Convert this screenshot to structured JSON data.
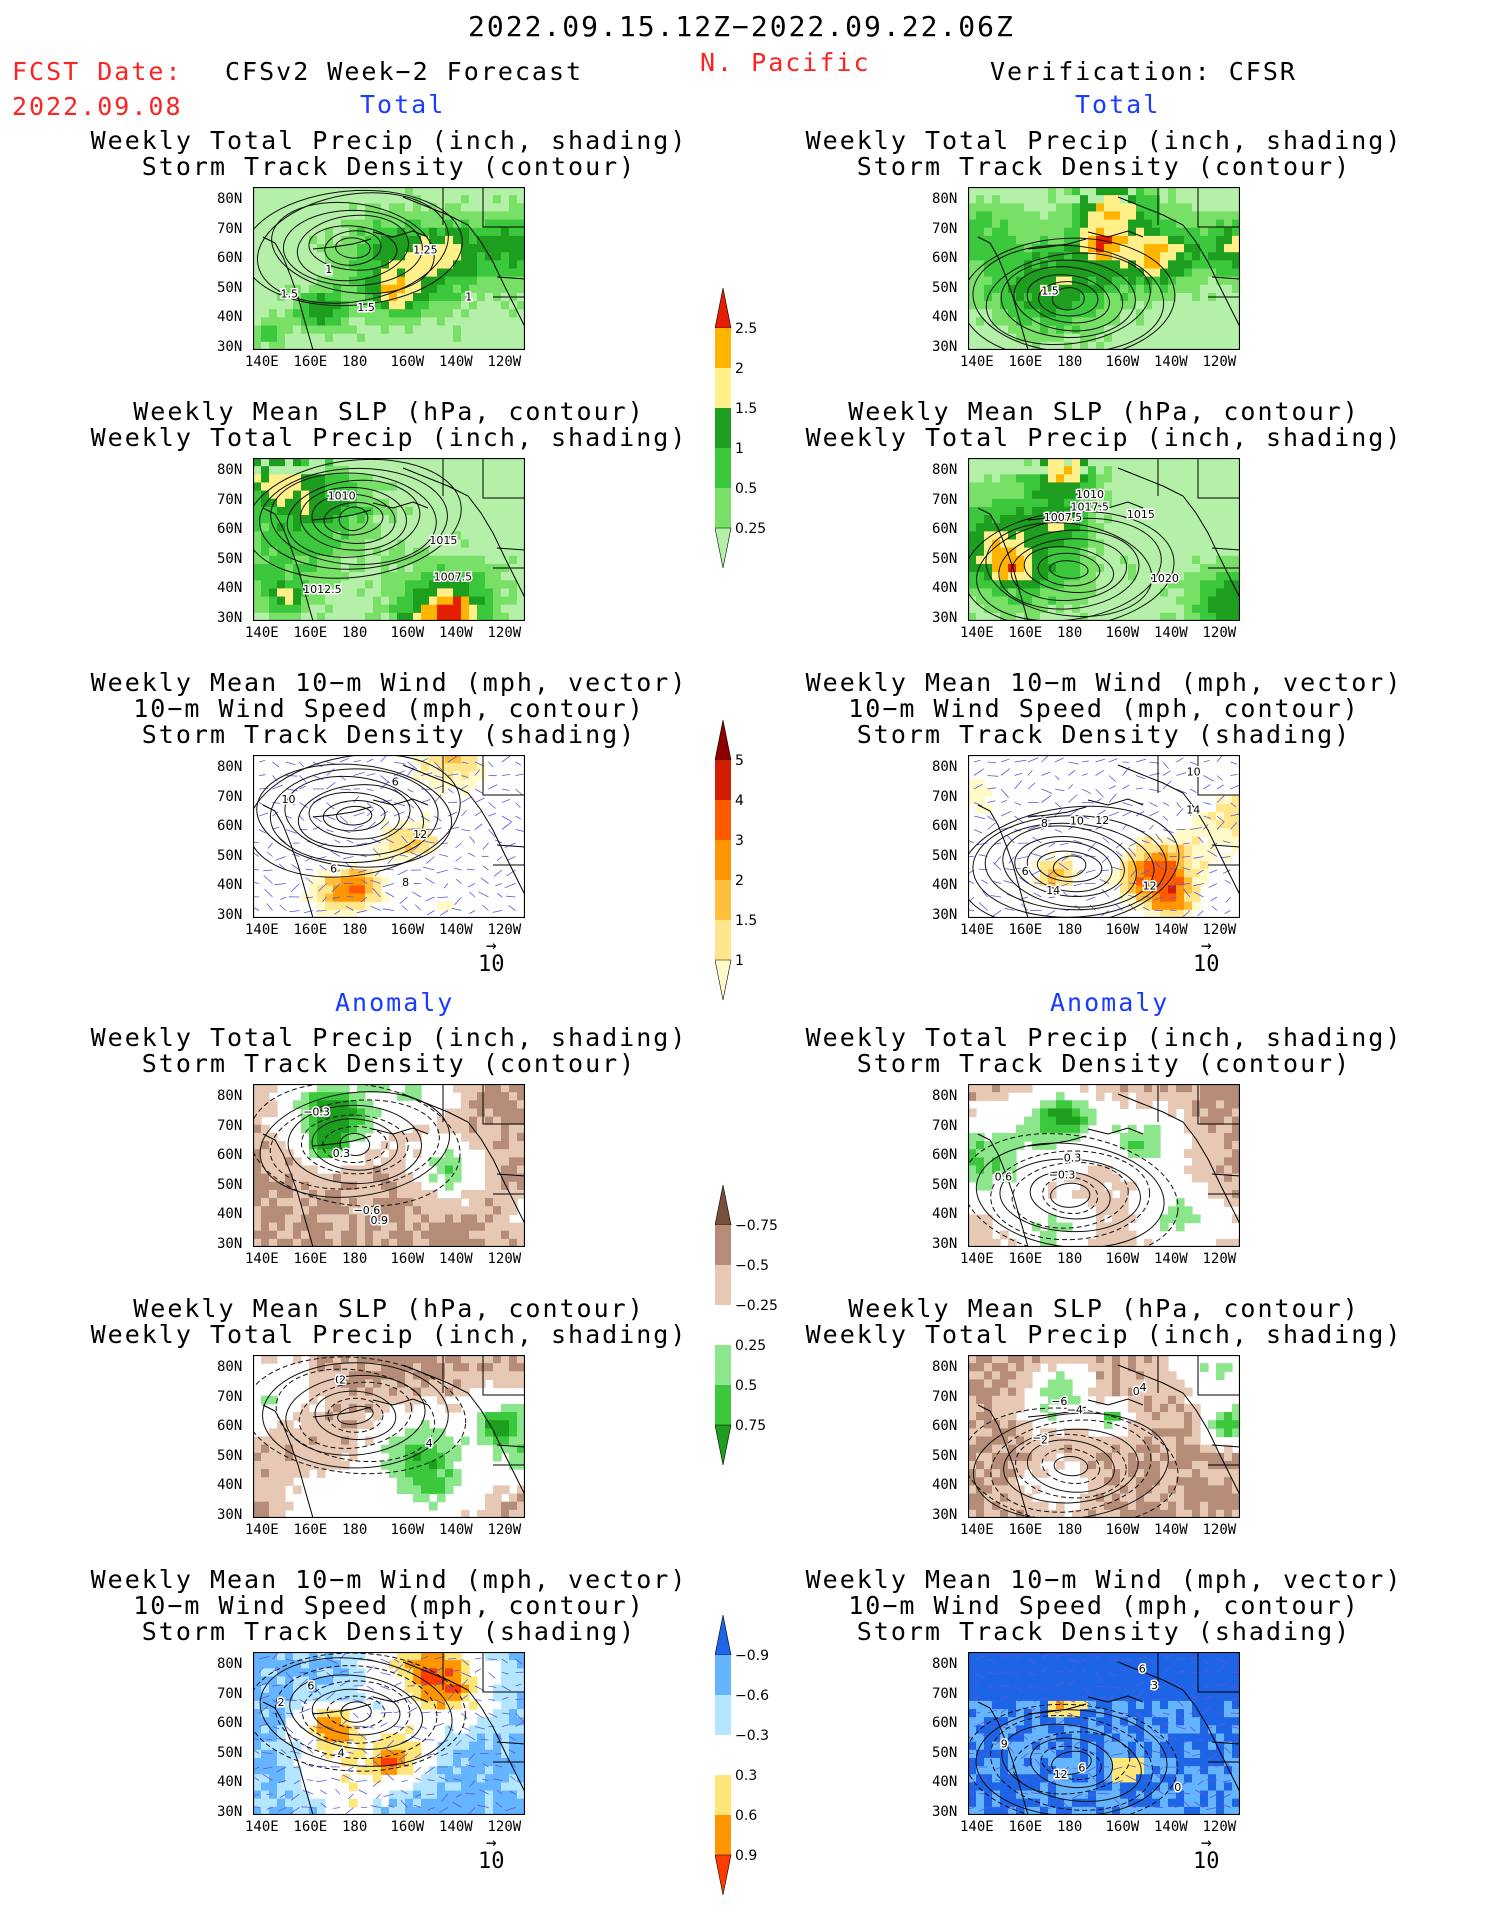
{
  "header": {
    "date_range": "2022.09.15.12Z−2022.09.22.06Z",
    "region": "N. Pacific",
    "fcst_label": "FCST Date:",
    "fcst_date": "2022.09.08",
    "left_title": "CFSv2 Week−2 Forecast",
    "right_title": "Verification: CFSR"
  },
  "sections": {
    "total": "Total",
    "anomaly": "Anomaly"
  },
  "panel_titles": {
    "precip_storm": [
      "Weekly Total Precip (inch, shading)",
      "Storm Track Density (contour)"
    ],
    "slp_precip": [
      "Weekly Mean SLP (hPa, contour)",
      "Weekly Total Precip (inch, shading)"
    ],
    "wind": [
      "Weekly Mean 10−m Wind (mph, vector)",
      "10−m Wind Speed (mph, contour)",
      "Storm Track Density (shading)"
    ]
  },
  "axes": {
    "lat_ticks": [
      "80N",
      "70N",
      "60N",
      "50N",
      "40N",
      "30N"
    ],
    "lon_ticks": [
      "140E",
      "160E",
      "180",
      "160W",
      "140W",
      "120W"
    ]
  },
  "vector_ref": "10",
  "contour_labels": {
    "f_total_precip": [
      "1",
      "1",
      "1.5",
      "1.25",
      "1.5"
    ],
    "v_total_precip": [
      "1.5"
    ],
    "f_total_slp": [
      "1010",
      "1007.5",
      "1015",
      "1012.5"
    ],
    "v_total_slp": [
      "1007.5",
      "1015",
      "1017.5",
      "1020",
      "1010"
    ],
    "f_total_wind": [
      "6",
      "8",
      "10",
      "12",
      "6"
    ],
    "v_total_wind": [
      "14",
      "12",
      "12",
      "8",
      "6",
      "10",
      "14",
      "10"
    ],
    "f_anom_precip": [
      "0.3",
      "0.9",
      "−0.6",
      "−0.3"
    ],
    "v_anom_precip": [
      "−0.3",
      "0.3",
      "0.6"
    ],
    "f_anom_slp": [
      "0",
      "2",
      "4"
    ],
    "v_anom_slp": [
      "−6",
      "−6",
      "−4",
      "2",
      "0",
      "4"
    ],
    "f_anom_wind": [
      "4",
      "6",
      "2"
    ],
    "v_anom_wind": [
      "12",
      "9",
      "6",
      "3",
      "6",
      "0"
    ]
  },
  "colorbars": {
    "precip_total": {
      "levels": [
        "0.25",
        "0.5",
        "1",
        "1.5",
        "2",
        "2.5"
      ],
      "colors": [
        "#b4f0a8",
        "#78e066",
        "#3cc83c",
        "#1e9e1e",
        "#fff08a",
        "#ffb400",
        "#e61e00"
      ]
    },
    "storm_total": {
      "levels": [
        "1",
        "1.5",
        "2",
        "3",
        "4",
        "5"
      ],
      "colors": [
        "#fffac8",
        "#ffe68c",
        "#ffbe3c",
        "#ff9600",
        "#ff5a00",
        "#d21e00",
        "#8c0000"
      ]
    },
    "precip_anom": {
      "levels": [
        "0.75",
        "0.5",
        "0.25",
        "−0.25",
        "−0.5",
        "−0.75"
      ],
      "colors": [
        "#1e9e1e",
        "#3cc83c",
        "#8ce68c",
        "#ffffff",
        "#e6c8b4",
        "#b48c78",
        "#78503c"
      ]
    },
    "storm_anom": {
      "levels": [
        "0.9",
        "0.6",
        "0.3",
        "−0.3",
        "−0.6",
        "−0.9"
      ],
      "colors": [
        "#ff3c00",
        "#ff9600",
        "#ffe678",
        "#ffffff",
        "#b4e6ff",
        "#64b4ff",
        "#1e64e6"
      ]
    }
  },
  "chart_data": [
    {
      "type": "heatmap",
      "panel": "forecast-total-precip-storm",
      "title": "Weekly Total Precip (inch, shading) / Storm Track Density (contour)",
      "field": "precip",
      "lat_range": [
        25,
        85
      ],
      "lon_range": [
        140,
        250
      ]
    },
    {
      "type": "heatmap",
      "panel": "verification-total-precip-storm",
      "title": "Weekly Total Precip (inch, shading) / Storm Track Density (contour)",
      "field": "precip",
      "lat_range": [
        25,
        85
      ],
      "lon_range": [
        140,
        250
      ]
    },
    {
      "type": "heatmap",
      "panel": "forecast-total-slp-precip",
      "title": "Weekly Mean SLP (hPa, contour) / Weekly Total Precip (inch, shading)",
      "field": "precip",
      "lat_range": [
        25,
        85
      ],
      "lon_range": [
        140,
        250
      ]
    },
    {
      "type": "heatmap",
      "panel": "verification-total-slp-precip",
      "title": "Weekly Mean SLP (hPa, contour) / Weekly Total Precip (inch, shading)",
      "field": "precip",
      "lat_range": [
        25,
        85
      ],
      "lon_range": [
        140,
        250
      ]
    },
    {
      "type": "heatmap",
      "panel": "forecast-total-wind",
      "title": "Weekly Mean 10-m Wind / 10-m Wind Speed / Storm Track Density",
      "field": "storm",
      "lat_range": [
        25,
        85
      ],
      "lon_range": [
        140,
        250
      ]
    },
    {
      "type": "heatmap",
      "panel": "verification-total-wind",
      "title": "Weekly Mean 10-m Wind / 10-m Wind Speed / Storm Track Density",
      "field": "storm",
      "lat_range": [
        25,
        85
      ],
      "lon_range": [
        140,
        250
      ]
    },
    {
      "type": "heatmap",
      "panel": "forecast-anomaly-precip-storm",
      "title": "Weekly Total Precip (inch, shading) / Storm Track Density (contour)",
      "field": "precip_anom",
      "lat_range": [
        25,
        85
      ],
      "lon_range": [
        140,
        250
      ]
    },
    {
      "type": "heatmap",
      "panel": "verification-anomaly-precip-storm",
      "title": "Weekly Total Precip (inch, shading) / Storm Track Density (contour)",
      "field": "precip_anom",
      "lat_range": [
        25,
        85
      ],
      "lon_range": [
        140,
        250
      ]
    },
    {
      "type": "heatmap",
      "panel": "forecast-anomaly-slp-precip",
      "title": "Weekly Mean SLP (hPa, contour) / Weekly Total Precip (inch, shading)",
      "field": "precip_anom",
      "lat_range": [
        25,
        85
      ],
      "lon_range": [
        140,
        250
      ]
    },
    {
      "type": "heatmap",
      "panel": "verification-anomaly-slp-precip",
      "title": "Weekly Mean SLP (hPa, contour) / Weekly Total Precip (inch, shading)",
      "field": "precip_anom",
      "lat_range": [
        25,
        85
      ],
      "lon_range": [
        140,
        250
      ]
    },
    {
      "type": "heatmap",
      "panel": "forecast-anomaly-wind",
      "title": "Weekly Mean 10-m Wind / 10-m Wind Speed / Storm Track Density",
      "field": "storm_anom",
      "lat_range": [
        25,
        85
      ],
      "lon_range": [
        140,
        250
      ]
    },
    {
      "type": "heatmap",
      "panel": "verification-anomaly-wind",
      "title": "Weekly Mean 10-m Wind / 10-m Wind Speed / Storm Track Density",
      "field": "storm_anom",
      "lat_range": [
        25,
        85
      ],
      "lon_range": [
        140,
        250
      ]
    }
  ]
}
